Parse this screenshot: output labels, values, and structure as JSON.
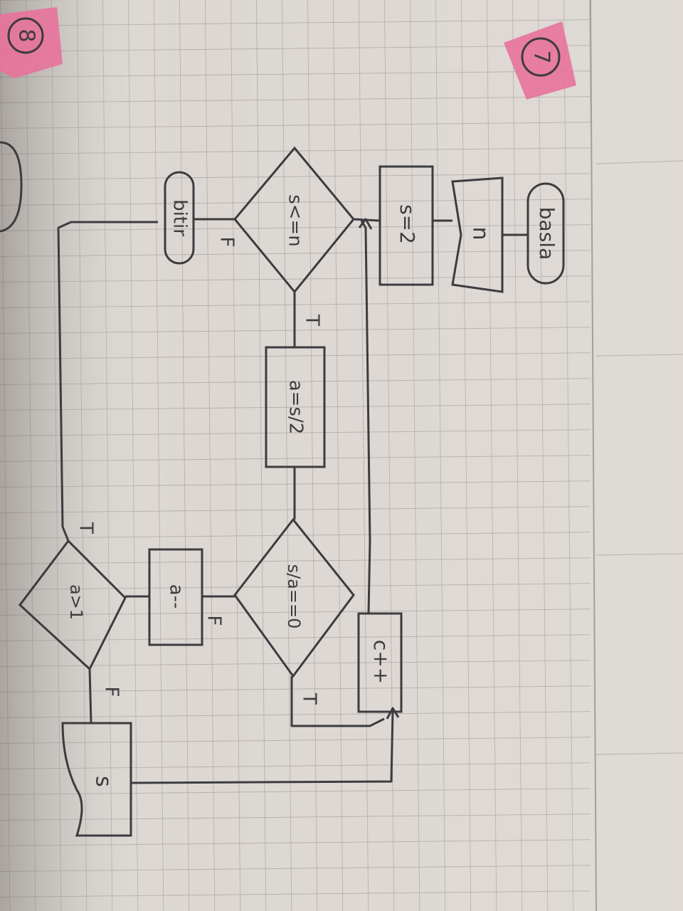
{
  "page_numbers": {
    "left": "8",
    "right": "7"
  },
  "flowchart": {
    "start": "basla",
    "input": "n",
    "init": "s=2",
    "loop_condition": "s<=n",
    "loop_true": "T",
    "loop_false": "F",
    "end": "bitir",
    "assign_a": "a=s/2",
    "divisible_check": "s/a==0",
    "divisible_true": "T",
    "divisible_false": "F",
    "decrement": "a--",
    "a_check": "a>1",
    "a_check_true": "T",
    "a_check_false": "F",
    "output": "s",
    "increment": "c++"
  },
  "colors": {
    "ink": "#3c3c40",
    "paper": "#e2ddd8",
    "grid": "#a9a4a2",
    "tape": "#e8729a"
  }
}
